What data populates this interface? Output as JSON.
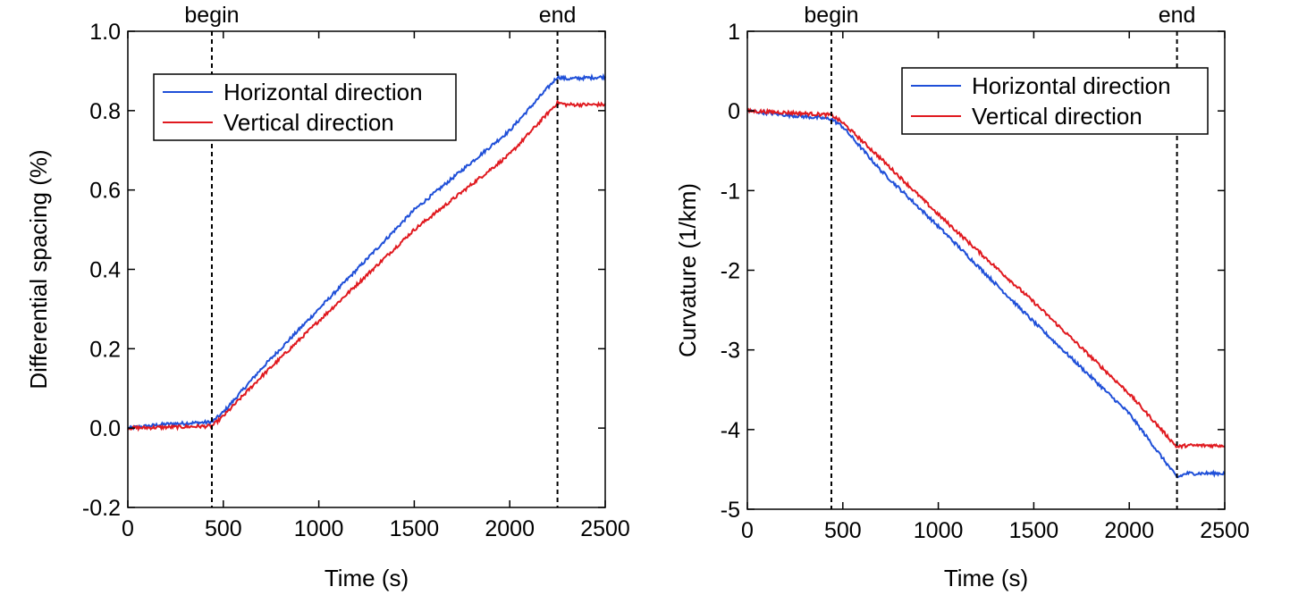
{
  "chart_data": [
    {
      "type": "line",
      "xlabel": "Time (s)",
      "ylabel": "Differential spacing (%)",
      "xlim": [
        0,
        2500
      ],
      "ylim": [
        -0.2,
        1.0
      ],
      "xticks": [
        0,
        500,
        1000,
        1500,
        2000,
        2500
      ],
      "xtick_labels": [
        "0",
        "500",
        "1000",
        "1500",
        "2000",
        "2500"
      ],
      "yticks": [
        -0.2,
        0.0,
        0.2,
        0.4,
        0.6,
        0.8,
        1.0
      ],
      "ytick_labels": [
        "-0.2",
        "0.0",
        "0.2",
        "0.4",
        "0.6",
        "0.8",
        "1.0"
      ],
      "grid": false,
      "legend_position": "top-left",
      "markers": [
        {
          "label": "begin",
          "x": 440
        },
        {
          "label": "end",
          "x": 2250
        }
      ],
      "series": [
        {
          "name": "Horizontal direction",
          "color": "#1f4fd8",
          "points": [
            [
              0,
              0.0
            ],
            [
              200,
              0.01
            ],
            [
              440,
              0.015
            ],
            [
              500,
              0.04
            ],
            [
              700,
              0.15
            ],
            [
              1000,
              0.3
            ],
            [
              1500,
              0.55
            ],
            [
              2000,
              0.75
            ],
            [
              2250,
              0.885
            ],
            [
              2300,
              0.88
            ],
            [
              2500,
              0.885
            ]
          ]
        },
        {
          "name": "Vertical direction",
          "color": "#e0191f",
          "points": [
            [
              0,
              0.0
            ],
            [
              200,
              0.002
            ],
            [
              440,
              0.005
            ],
            [
              500,
              0.03
            ],
            [
              700,
              0.13
            ],
            [
              1000,
              0.27
            ],
            [
              1500,
              0.5
            ],
            [
              2000,
              0.69
            ],
            [
              2250,
              0.82
            ],
            [
              2300,
              0.815
            ],
            [
              2500,
              0.815
            ]
          ]
        }
      ]
    },
    {
      "type": "line",
      "xlabel": "Time (s)",
      "ylabel": "Curvature (1/km)",
      "xlim": [
        0,
        2500
      ],
      "ylim": [
        -5,
        1
      ],
      "xticks": [
        0,
        500,
        1000,
        1500,
        2000,
        2500
      ],
      "xtick_labels": [
        "0",
        "500",
        "1000",
        "1500",
        "2000",
        "2500"
      ],
      "yticks": [
        -5,
        -4,
        -3,
        -2,
        -1,
        0,
        1
      ],
      "ytick_labels": [
        "-5",
        "-4",
        "-3",
        "-2",
        "-1",
        "0",
        "1"
      ],
      "grid": false,
      "legend_position": "top-right",
      "markers": [
        {
          "label": "begin",
          "x": 440
        },
        {
          "label": "end",
          "x": 2250
        }
      ],
      "series": [
        {
          "name": "Horizontal direction",
          "color": "#1f4fd8",
          "points": [
            [
              0,
              0.0
            ],
            [
              200,
              -0.05
            ],
            [
              440,
              -0.1
            ],
            [
              500,
              -0.2
            ],
            [
              700,
              -0.75
            ],
            [
              1000,
              -1.45
            ],
            [
              1500,
              -2.65
            ],
            [
              2000,
              -3.8
            ],
            [
              2250,
              -4.6
            ],
            [
              2300,
              -4.55
            ],
            [
              2500,
              -4.55
            ]
          ]
        },
        {
          "name": "Vertical direction",
          "color": "#e0191f",
          "points": [
            [
              0,
              0.0
            ],
            [
              200,
              -0.02
            ],
            [
              440,
              -0.05
            ],
            [
              500,
              -0.15
            ],
            [
              700,
              -0.6
            ],
            [
              1000,
              -1.3
            ],
            [
              1500,
              -2.4
            ],
            [
              2000,
              -3.55
            ],
            [
              2250,
              -4.22
            ],
            [
              2300,
              -4.2
            ],
            [
              2500,
              -4.2
            ]
          ]
        }
      ]
    }
  ]
}
